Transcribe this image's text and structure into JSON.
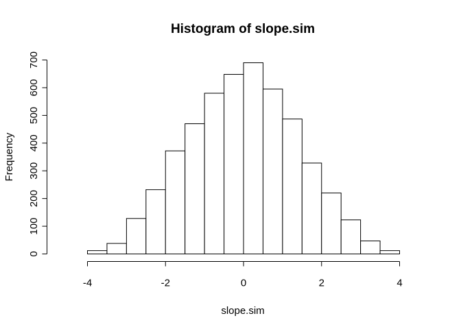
{
  "chart_data": {
    "type": "bar",
    "title": "Histogram of slope.sim",
    "xlabel": "slope.sim",
    "ylabel": "Frequency",
    "bin_edges": [
      -4,
      -3.5,
      -3,
      -2.5,
      -2,
      -1.5,
      -1,
      -0.5,
      0,
      0.5,
      1,
      1.5,
      2,
      2.5,
      3,
      3.5,
      4
    ],
    "values": [
      12,
      38,
      128,
      232,
      372,
      470,
      580,
      648,
      690,
      595,
      487,
      328,
      220,
      123,
      47,
      12
    ],
    "xlim": [
      -4.5,
      4.5
    ],
    "ylim": [
      0,
      700
    ],
    "x_ticks": [
      -4,
      -2,
      0,
      2,
      4
    ],
    "x_tick_labels": [
      "-4",
      "-2",
      "0",
      "2",
      "4"
    ],
    "y_ticks": [
      0,
      100,
      200,
      300,
      400,
      500,
      600,
      700
    ],
    "y_tick_labels": [
      "0",
      "100",
      "200",
      "300",
      "400",
      "500",
      "600",
      "700"
    ],
    "grid": false,
    "legend": "none",
    "bar_fill": "#ffffff",
    "bar_stroke": "#000000"
  }
}
